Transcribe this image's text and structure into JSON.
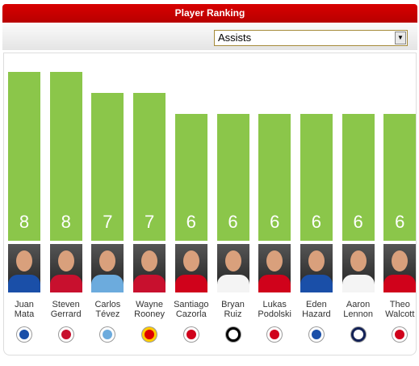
{
  "header": {
    "title": "Player Ranking"
  },
  "dropdown": {
    "selected": "Assists"
  },
  "chart_data": {
    "type": "bar",
    "color": "#8bc64a",
    "categories": [
      "Juan Mata",
      "Steven Gerrard",
      "Carlos Tévez",
      "Wayne Rooney",
      "Santiago Cazorla",
      "Bryan Ruiz",
      "Lukas Podolski",
      "Eden Hazard",
      "Aaron Lennon",
      "Theo Walcott"
    ],
    "values": [
      8,
      8,
      7,
      7,
      6,
      6,
      6,
      6,
      6,
      6
    ]
  }
}
